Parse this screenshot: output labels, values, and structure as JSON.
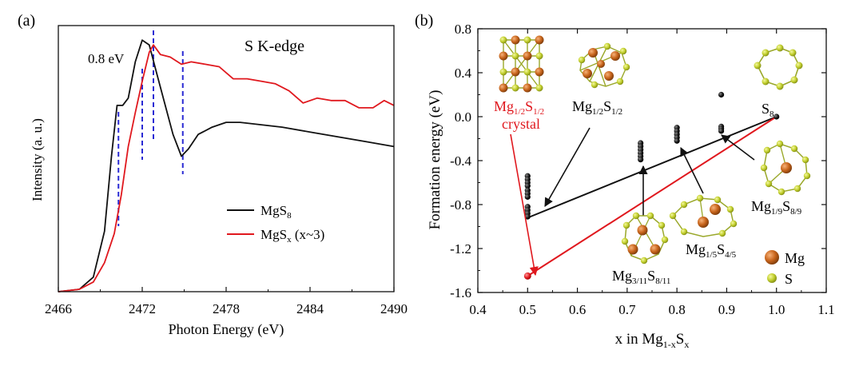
{
  "colors": {
    "black": "#111111",
    "red": "#e0181e",
    "blue": "#2a2ad4",
    "mg": "#c8651c",
    "s": "#c2cf2e",
    "bond": "#9aa82a"
  },
  "chart_data": [
    {
      "panel": "(a)",
      "type": "line",
      "title": "S K-edge",
      "xlabel": "Photon Energy (eV)",
      "ylabel": "Intensity (a. u.)",
      "xlim": [
        2466,
        2490
      ],
      "ylim": [
        0,
        1.1
      ],
      "xticks": [
        "2466",
        "2472",
        "2478",
        "2484",
        "2490"
      ],
      "annotation": "0.8 eV",
      "dashed_lines_x": [
        2470.3,
        2472.0,
        2472.8,
        2474.9
      ],
      "legend": [
        {
          "base": "MgS",
          "sub": "8",
          "suffix": ""
        },
        {
          "base": "MgS",
          "sub": "x",
          "suffix": " (x~3)"
        }
      ],
      "series": [
        {
          "name": "MgS8",
          "color": "#111111",
          "x": [
            2466,
            2467.5,
            2468.5,
            2469.3,
            2469.8,
            2470.2,
            2470.6,
            2471.0,
            2471.5,
            2472.0,
            2472.5,
            2473.0,
            2473.6,
            2474.2,
            2474.8,
            2475.3,
            2476.0,
            2477.0,
            2478.0,
            2479.0,
            2480.5,
            2482.0,
            2484.0,
            2486.0,
            2488.0,
            2490.0
          ],
          "y": [
            0.0,
            0.01,
            0.06,
            0.25,
            0.56,
            0.77,
            0.77,
            0.8,
            0.95,
            1.04,
            1.02,
            0.91,
            0.78,
            0.65,
            0.56,
            0.59,
            0.65,
            0.68,
            0.7,
            0.7,
            0.69,
            0.68,
            0.66,
            0.64,
            0.62,
            0.6
          ]
        },
        {
          "name": "MgSx (x~3)",
          "color": "#e0181e",
          "x": [
            2466,
            2467.5,
            2468.5,
            2469.3,
            2470.0,
            2470.5,
            2471.0,
            2471.5,
            2472.0,
            2472.5,
            2472.8,
            2473.3,
            2474.0,
            2474.8,
            2475.5,
            2476.5,
            2477.5,
            2478.5,
            2479.5,
            2480.5,
            2481.5,
            2482.5,
            2483.5,
            2484.5,
            2485.5,
            2486.5,
            2487.5,
            2488.5,
            2489.3,
            2490.0
          ],
          "y": [
            0.0,
            0.01,
            0.04,
            0.12,
            0.24,
            0.4,
            0.6,
            0.74,
            0.87,
            0.99,
            1.02,
            0.98,
            0.97,
            0.94,
            0.95,
            0.94,
            0.93,
            0.88,
            0.88,
            0.87,
            0.86,
            0.83,
            0.78,
            0.8,
            0.79,
            0.79,
            0.76,
            0.76,
            0.79,
            0.77
          ]
        }
      ]
    },
    {
      "panel": "(b)",
      "type": "scatter",
      "xlabel": "x in Mg1-xSx",
      "ylabel": "Formation energy (eV)",
      "xlim": [
        0.4,
        1.1
      ],
      "ylim": [
        -1.6,
        0.8
      ],
      "xticks": [
        "0.4",
        "0.5",
        "0.6",
        "0.7",
        "0.8",
        "0.9",
        "1.0",
        "1.1"
      ],
      "yticks": [
        "0.8",
        "0.4",
        "0.0",
        "-0.4",
        "-0.8",
        "-1.2",
        "-1.6"
      ],
      "black_points": [
        {
          "x": 0.5,
          "y": -0.54
        },
        {
          "x": 0.5,
          "y": -0.57
        },
        {
          "x": 0.5,
          "y": -0.6
        },
        {
          "x": 0.5,
          "y": -0.63
        },
        {
          "x": 0.5,
          "y": -0.67
        },
        {
          "x": 0.5,
          "y": -0.7
        },
        {
          "x": 0.5,
          "y": -0.73
        },
        {
          "x": 0.5,
          "y": -0.82
        },
        {
          "x": 0.5,
          "y": -0.85
        },
        {
          "x": 0.5,
          "y": -0.88
        },
        {
          "x": 0.5,
          "y": -0.91
        },
        {
          "x": 0.727,
          "y": -0.24
        },
        {
          "x": 0.727,
          "y": -0.27
        },
        {
          "x": 0.727,
          "y": -0.3
        },
        {
          "x": 0.727,
          "y": -0.33
        },
        {
          "x": 0.727,
          "y": -0.36
        },
        {
          "x": 0.727,
          "y": -0.39
        },
        {
          "x": 0.8,
          "y": -0.1
        },
        {
          "x": 0.8,
          "y": -0.13
        },
        {
          "x": 0.8,
          "y": -0.16
        },
        {
          "x": 0.8,
          "y": -0.19
        },
        {
          "x": 0.8,
          "y": -0.22
        },
        {
          "x": 0.889,
          "y": 0.2
        },
        {
          "x": 0.889,
          "y": -0.09
        },
        {
          "x": 0.889,
          "y": -0.11
        },
        {
          "x": 0.889,
          "y": -0.13
        },
        {
          "x": 1.0,
          "y": 0.0
        }
      ],
      "red_points": [
        {
          "x": 0.5,
          "y": -1.45
        }
      ],
      "black_hull": [
        {
          "x": 0.5,
          "y": -0.92
        },
        {
          "x": 1.0,
          "y": 0.0
        }
      ],
      "red_hull": [
        {
          "x": 0.5,
          "y": -1.45
        },
        {
          "x": 1.0,
          "y": 0.0
        }
      ],
      "labels": {
        "s8": {
          "base": "S",
          "sub": "8"
        },
        "mg12_crystal": {
          "base1": "Mg",
          "sub1": "1/2",
          "base2": "S",
          "sub2": "1/2",
          "line2": "crystal"
        },
        "mg12": {
          "base1": "Mg",
          "sub1": "1/2",
          "base2": "S",
          "sub2": "1/2"
        },
        "mg19": {
          "base1": "Mg",
          "sub1": "1/9",
          "base2": "S",
          "sub2": "8/9"
        },
        "mg15": {
          "base1": "Mg",
          "sub1": "1/5",
          "base2": "S",
          "sub2": "4/5"
        },
        "mg311": {
          "base1": "Mg",
          "sub1": "3/11",
          "base2": "S",
          "sub2": "8/11"
        }
      },
      "legend": [
        {
          "label": "Mg"
        },
        {
          "label": "S"
        }
      ]
    }
  ]
}
